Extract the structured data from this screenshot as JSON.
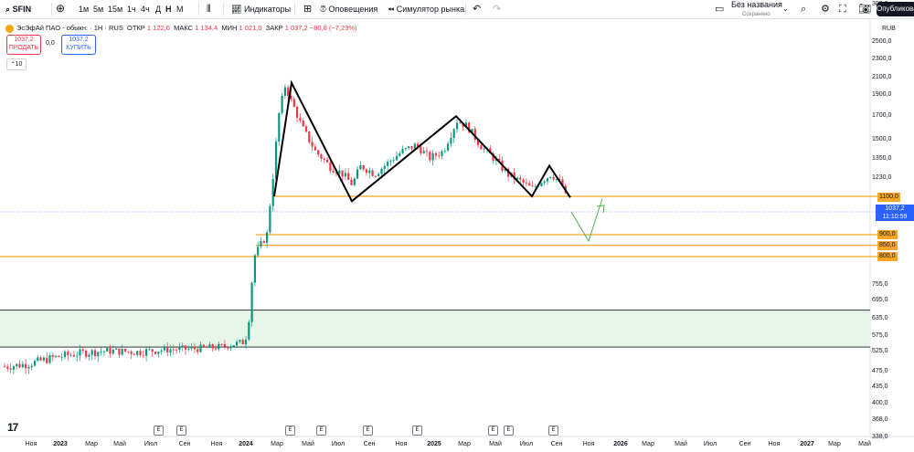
{
  "toolbar": {
    "ticker": "SFIN",
    "intervals": [
      "1м",
      "5м",
      "15м",
      "1ч",
      "4ч",
      "Д",
      "Н",
      "М"
    ],
    "active_interval": "Н",
    "indicators": "Индикаторы",
    "alerts": "Оповещения",
    "replay": "Симулятор рынка",
    "layout_name": "Без названия",
    "layout_status": "Сохранено",
    "publish": "Опубликовать"
  },
  "legend": {
    "title": "ЭсЭфАй ПАО - обыкн. · 1Н · RUS",
    "open_label": "ОТКР",
    "open": "1 122,6",
    "high_label": "МАКС",
    "high": "1 134,4",
    "low_label": "МИН",
    "low": "1 021,0",
    "close_label": "ЗАКР",
    "close": "1 037,2",
    "change": "−80,8 (−7,23%)"
  },
  "trade": {
    "sell_price": "1037,2",
    "sell_label": "ПРОДАТЬ",
    "spread": "0,0",
    "buy_price": "1037,2",
    "buy_label": "КУПИТЬ",
    "volume": "10"
  },
  "currency": "RUB",
  "price_axis": [
    "2500,0",
    "2300,0",
    "2100,0",
    "1900,0",
    "1700,0",
    "1500,0",
    "1350,0",
    "1230,0",
    "1100,0",
    "1037,2",
    "900,0",
    "850,0",
    "800,0",
    "755,0",
    "695,0",
    "635,0",
    "575,0",
    "525,0",
    "475,0",
    "435,0",
    "400,0",
    "368,0",
    "338,0",
    "308,0"
  ],
  "level_labels": {
    "l1100": "1100,0",
    "l900": "900,0",
    "l850": "850,0",
    "l800": "800,0"
  },
  "current": {
    "price": "1037,2",
    "countdown": "11:10:59"
  },
  "time_axis": [
    {
      "label": "Ноя",
      "bold": false
    },
    {
      "label": "2023",
      "bold": true
    },
    {
      "label": "Мар",
      "bold": false
    },
    {
      "label": "Май",
      "bold": false
    },
    {
      "label": "Июл",
      "bold": false
    },
    {
      "label": "Сен",
      "bold": false
    },
    {
      "label": "Ноя",
      "bold": false
    },
    {
      "label": "2024",
      "bold": true
    },
    {
      "label": "Мар",
      "bold": false
    },
    {
      "label": "Май",
      "bold": false
    },
    {
      "label": "Июл",
      "bold": false
    },
    {
      "label": "Сен",
      "bold": false
    },
    {
      "label": "Ноя",
      "bold": false
    },
    {
      "label": "2025",
      "bold": true
    },
    {
      "label": "Мар",
      "bold": false
    },
    {
      "label": "Май",
      "bold": false
    },
    {
      "label": "Июл",
      "bold": false
    },
    {
      "label": "Сен",
      "bold": false
    },
    {
      "label": "Ноя",
      "bold": false
    },
    {
      "label": "2026",
      "bold": true
    },
    {
      "label": "Мар",
      "bold": false
    },
    {
      "label": "Май",
      "bold": false
    },
    {
      "label": "Июл",
      "bold": false
    },
    {
      "label": "Сен",
      "bold": false
    },
    {
      "label": "Ноя",
      "bold": false
    },
    {
      "label": "2027",
      "bold": true
    },
    {
      "label": "Мар",
      "bold": false
    },
    {
      "label": "Май",
      "bold": false
    }
  ],
  "earnings_marker": "E",
  "colors": {
    "up": "#089981",
    "down": "#f23645",
    "level": "#f5a623",
    "zone": "#e8f5e9",
    "accent": "#2962ff"
  },
  "chart_data": {
    "type": "candlestick",
    "symbol": "SFIN",
    "interval": "1W",
    "price_ticks": [
      2500,
      2300,
      2100,
      1900,
      1700,
      1500,
      1350,
      1230,
      1100,
      900,
      850,
      800,
      755,
      695,
      635,
      575,
      525,
      475,
      435,
      400,
      368,
      338,
      308
    ],
    "horizontal_levels": [
      1100,
      900,
      850,
      800
    ],
    "support_zone": [
      485,
      600
    ],
    "pattern_points": [
      [
        1100,
        "2024-03"
      ],
      [
        2030,
        "2024-03"
      ],
      [
        1080,
        "2024-08"
      ],
      [
        1690,
        "2025-02"
      ],
      [
        1100,
        "2025-07"
      ],
      [
        1300,
        "2025-08"
      ],
      [
        1095,
        "2025-09"
      ]
    ],
    "projection": [
      [
        1037,
        "2025-10"
      ],
      [
        870,
        "2025-10"
      ],
      [
        1090,
        "2025-11"
      ]
    ]
  }
}
